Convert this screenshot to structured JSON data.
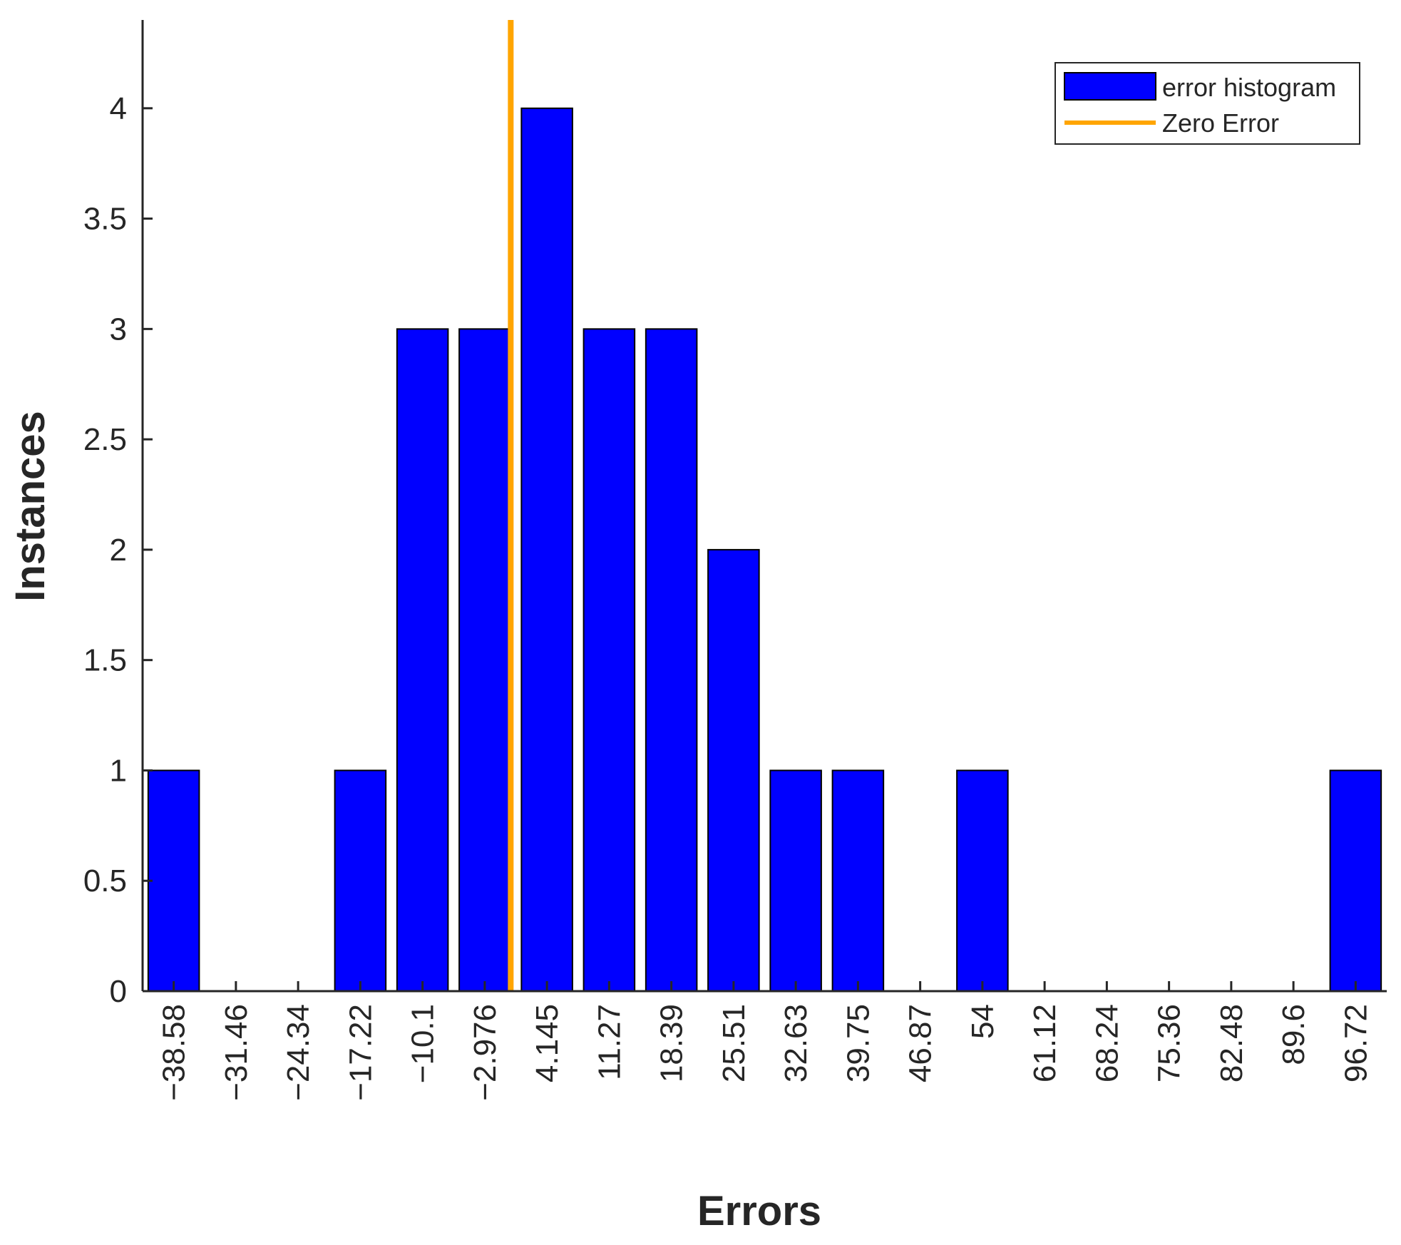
{
  "chart_data": {
    "type": "bar",
    "xlabel": "Errors",
    "ylabel": "Instances",
    "ylim": [
      0,
      4.4
    ],
    "yticks": [
      0,
      0.5,
      1,
      1.5,
      2,
      2.5,
      3,
      3.5,
      4
    ],
    "ytick_labels": [
      "0",
      "0.5",
      "1",
      "1.5",
      "2",
      "2.5",
      "3",
      "3.5",
      "4"
    ],
    "categories": [
      "-38.58",
      "-31.46",
      "-24.34",
      "-17.22",
      "-10.1",
      "-2.976",
      "4.145",
      "11.27",
      "18.39",
      "25.51",
      "32.63",
      "39.75",
      "46.87",
      "54",
      "61.12",
      "68.24",
      "75.36",
      "82.48",
      "89.6",
      "96.72"
    ],
    "xtick_labels": [
      "−38.58",
      "−31.46",
      "−24.34",
      "−17.22",
      "−10.1",
      "−2.976",
      "4.145",
      "11.27",
      "18.39",
      "25.51",
      "32.63",
      "39.75",
      "46.87",
      "54",
      "61.12",
      "68.24",
      "75.36",
      "82.48",
      "89.6",
      "96.72"
    ],
    "series": [
      {
        "name": "error histogram",
        "values": [
          1,
          0,
          0,
          1,
          3,
          3,
          4,
          3,
          3,
          2,
          1,
          1,
          0,
          1,
          0,
          0,
          0,
          0,
          0,
          1
        ],
        "color": "#0000ff"
      }
    ],
    "zero_error": {
      "name": "Zero Error",
      "x": 0,
      "color": "#ffa500"
    },
    "legend": {
      "position": "top-right",
      "entries": [
        "error histogram",
        "Zero Error"
      ]
    },
    "grid": false
  }
}
